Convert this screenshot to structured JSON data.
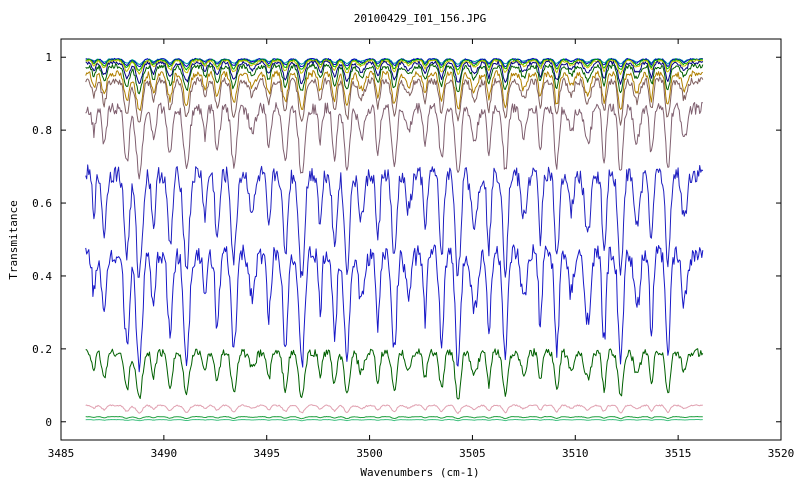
{
  "chart_data": {
    "type": "line",
    "title": "20100429_I01_156.JPG",
    "xlabel": "Wavenumbers (cm-1)",
    "ylabel": "Transmitance",
    "xlim": [
      3485,
      3520
    ],
    "ylim": [
      -0.05,
      1.05
    ],
    "x_ticks": [
      3485,
      3490,
      3495,
      3500,
      3505,
      3510,
      3515,
      3520
    ],
    "y_ticks": [
      0,
      0.2,
      0.4,
      0.6,
      0.8,
      1
    ],
    "y_tick_labels": [
      "0",
      "0.2",
      "0.4",
      "0.6",
      "0.8",
      "1"
    ],
    "x_range": [
      3486.2,
      3516.2
    ],
    "grid": false,
    "absorption_lines": [
      3486.6,
      3487.1,
      3488.2,
      3488.8,
      3489.5,
      3490.3,
      3491.1,
      3492.0,
      3492.6,
      3493.4,
      3494.3,
      3495.1,
      3495.9,
      3496.7,
      3497.6,
      3498.3,
      3498.9,
      3499.6,
      3500.4,
      3501.2,
      3501.9,
      3502.7,
      3503.5,
      3504.3,
      3505.1,
      3505.8,
      3506.6,
      3507.5,
      3508.3,
      3509.1,
      3509.8,
      3510.6,
      3511.4,
      3512.2,
      3513.0,
      3513.7,
      3514.5,
      3515.3
    ],
    "series": [
      {
        "color": "#00a0a0",
        "baseline": 0.995,
        "depth": 0.01
      },
      {
        "color": "#0000c0",
        "baseline": 0.995,
        "depth": 0.015
      },
      {
        "color": "#00a000",
        "baseline": 0.993,
        "depth": 0.02
      },
      {
        "color": "#c0c000",
        "baseline": 0.99,
        "depth": 0.025
      },
      {
        "color": "#000080",
        "baseline": 0.985,
        "depth": 0.04
      },
      {
        "color": "#006000",
        "baseline": 0.975,
        "depth": 0.05
      },
      {
        "color": "#b08000",
        "baseline": 0.955,
        "depth": 0.07
      },
      {
        "color": "#806060",
        "baseline": 0.935,
        "depth": 0.08
      },
      {
        "color": "#806070",
        "baseline": 0.86,
        "depth": 0.13
      },
      {
        "color": "#2020c0",
        "baseline": 0.68,
        "depth": 0.2
      },
      {
        "color": "#1818c8",
        "baseline": 0.46,
        "depth": 0.22
      },
      {
        "color": "#006000",
        "baseline": 0.19,
        "depth": 0.09
      },
      {
        "color": "#e0a0b0",
        "baseline": 0.045,
        "depth": 0.015
      },
      {
        "color": "#20a040",
        "baseline": 0.014,
        "depth": 0.004
      },
      {
        "color": "#40c080",
        "baseline": 0.006,
        "depth": 0.002
      }
    ]
  }
}
